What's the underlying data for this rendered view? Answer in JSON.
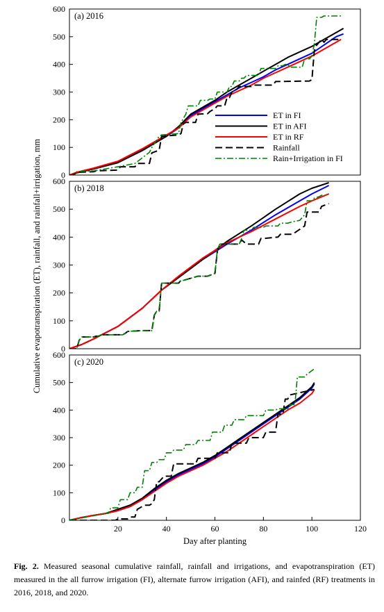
{
  "chart_data": [
    {
      "type": "line",
      "panel_label": "(a) 2016",
      "ylim": [
        0,
        600
      ],
      "y_ticks": [
        0,
        100,
        200,
        300,
        400,
        500,
        600
      ],
      "legend": "center-right",
      "series": [
        {
          "name": "ET in FI",
          "color": "#0000ff",
          "dash": "solid",
          "x": [
            0,
            3,
            10,
            20,
            30,
            40,
            45,
            50,
            55,
            60,
            65,
            70,
            75,
            80,
            85,
            90,
            95,
            100,
            105,
            110,
            113
          ],
          "y": [
            0,
            8,
            22,
            45,
            90,
            140,
            170,
            215,
            240,
            265,
            290,
            315,
            335,
            355,
            380,
            400,
            420,
            440,
            470,
            500,
            510
          ]
        },
        {
          "name": "ET in AFI",
          "color": "#000000",
          "dash": "solid",
          "x": [
            0,
            3,
            10,
            20,
            30,
            40,
            45,
            50,
            55,
            60,
            65,
            70,
            75,
            80,
            85,
            90,
            95,
            100,
            105,
            110,
            113
          ],
          "y": [
            0,
            8,
            22,
            45,
            88,
            140,
            175,
            220,
            245,
            270,
            300,
            325,
            350,
            375,
            400,
            425,
            445,
            465,
            490,
            515,
            530
          ]
        },
        {
          "name": "ET in RF",
          "color": "#ff0000",
          "dash": "solid",
          "x": [
            0,
            3,
            10,
            20,
            30,
            40,
            45,
            50,
            55,
            60,
            65,
            70,
            75,
            80,
            85,
            90,
            95,
            100,
            105,
            110,
            112
          ],
          "y": [
            0,
            10,
            25,
            50,
            95,
            145,
            170,
            210,
            235,
            260,
            285,
            305,
            325,
            350,
            370,
            390,
            410,
            430,
            455,
            480,
            490
          ]
        },
        {
          "name": "Rainfall",
          "color": "#000000",
          "dash": "dash",
          "x": [
            0,
            1,
            2,
            3,
            10,
            11,
            20,
            21,
            27,
            28,
            33,
            34,
            37,
            38,
            45,
            46,
            47,
            48,
            52,
            53,
            57,
            58,
            60,
            61,
            64,
            65,
            66,
            67,
            69,
            70,
            75,
            76,
            84,
            85,
            99,
            100,
            101,
            102,
            104,
            105,
            106,
            107,
            112
          ],
          "y": [
            0,
            0,
            3,
            10,
            12,
            15,
            18,
            30,
            30,
            42,
            42,
            80,
            90,
            140,
            145,
            150,
            185,
            190,
            190,
            220,
            222,
            230,
            240,
            250,
            250,
            280,
            280,
            300,
            310,
            320,
            320,
            325,
            325,
            338,
            340,
            345,
            450,
            470,
            490,
            480,
            490,
            490,
            490
          ]
        },
        {
          "name": "Rain+Irrigation in FI",
          "color": "#008000",
          "dash": "dashdot",
          "x": [
            0,
            2,
            3,
            10,
            20,
            27,
            33,
            34,
            37,
            38,
            45,
            46,
            48,
            49,
            53,
            54,
            57,
            58,
            60,
            61,
            65,
            66,
            67,
            68,
            70,
            71,
            72,
            73,
            78,
            79,
            85,
            86,
            88,
            89,
            90,
            91,
            96,
            97,
            99,
            100,
            101,
            102,
            104,
            105,
            106,
            107,
            112
          ],
          "y": [
            0,
            0,
            12,
            15,
            30,
            42,
            82,
            100,
            140,
            145,
            150,
            190,
            220,
            250,
            250,
            270,
            270,
            275,
            275,
            300,
            300,
            320,
            320,
            340,
            340,
            350,
            350,
            360,
            360,
            385,
            385,
            395,
            395,
            400,
            400,
            390,
            390,
            420,
            420,
            430,
            475,
            570,
            570,
            575,
            575,
            575,
            575
          ]
        }
      ]
    },
    {
      "type": "line",
      "panel_label": "(b) 2018",
      "ylim": [
        0,
        600
      ],
      "y_ticks": [
        0,
        100,
        200,
        300,
        400,
        500,
        600
      ],
      "series": [
        {
          "name": "ET in FI",
          "color": "#0000ff",
          "dash": "solid",
          "x": [
            0,
            5,
            10,
            20,
            30,
            38,
            45,
            55,
            65,
            75,
            85,
            95,
            100,
            107
          ],
          "y": [
            0,
            15,
            35,
            80,
            145,
            210,
            255,
            320,
            375,
            425,
            480,
            530,
            555,
            585
          ]
        },
        {
          "name": "ET in AFI",
          "color": "#000000",
          "dash": "solid",
          "x": [
            0,
            5,
            10,
            20,
            30,
            38,
            45,
            55,
            65,
            75,
            85,
            95,
            100,
            107
          ],
          "y": [
            0,
            15,
            35,
            80,
            145,
            210,
            255,
            320,
            385,
            440,
            500,
            555,
            575,
            595
          ]
        },
        {
          "name": "ET in RF",
          "color": "#ff0000",
          "dash": "solid",
          "x": [
            0,
            5,
            10,
            20,
            30,
            38,
            45,
            55,
            65,
            75,
            85,
            95,
            100,
            107
          ],
          "y": [
            0,
            15,
            35,
            80,
            145,
            210,
            260,
            325,
            380,
            420,
            465,
            510,
            530,
            555
          ]
        },
        {
          "name": "Rainfall",
          "color": "#000000",
          "dash": "dash",
          "x": [
            0,
            3,
            4,
            5,
            10,
            11,
            12,
            13,
            22,
            23,
            24,
            30,
            34,
            35,
            36,
            37,
            38,
            45,
            46,
            47,
            49,
            53,
            57,
            60,
            61,
            62,
            70,
            71,
            73,
            78,
            79,
            80,
            86,
            87,
            90,
            92,
            97,
            98,
            103,
            104,
            107
          ],
          "y": [
            0,
            0,
            30,
            42,
            42,
            45,
            45,
            50,
            50,
            55,
            62,
            65,
            65,
            120,
            135,
            135,
            235,
            235,
            245,
            245,
            250,
            260,
            260,
            270,
            350,
            375,
            375,
            390,
            375,
            375,
            395,
            395,
            400,
            410,
            410,
            410,
            440,
            490,
            490,
            510,
            520
          ]
        },
        {
          "name": "Rain+Irrigation in FI",
          "color": "#008000",
          "dash": "dashdot",
          "x": [
            0,
            3,
            4,
            5,
            10,
            11,
            12,
            13,
            22,
            23,
            24,
            30,
            34,
            35,
            36,
            37,
            38,
            45,
            46,
            47,
            49,
            53,
            57,
            60,
            61,
            62,
            70,
            71,
            72,
            75,
            76,
            80,
            81,
            86,
            87,
            90,
            92,
            95,
            97,
            98,
            100,
            101,
            103,
            104,
            106,
            107
          ],
          "y": [
            0,
            0,
            30,
            42,
            42,
            45,
            45,
            50,
            50,
            55,
            62,
            65,
            65,
            120,
            135,
            135,
            235,
            235,
            245,
            245,
            250,
            260,
            260,
            270,
            355,
            375,
            375,
            395,
            425,
            425,
            435,
            435,
            440,
            440,
            450,
            450,
            455,
            460,
            480,
            530,
            530,
            540,
            545,
            550,
            550,
            555
          ]
        }
      ]
    },
    {
      "type": "line",
      "panel_label": "(c) 2020",
      "xlabel": "Day after planting",
      "xlim": [
        0,
        120
      ],
      "x_ticks": [
        20,
        40,
        60,
        80,
        100,
        120
      ],
      "ylim": [
        0,
        600
      ],
      "y_ticks": [
        0,
        100,
        200,
        300,
        400,
        500,
        600
      ],
      "series": [
        {
          "name": "ET in FI",
          "color": "#0000ff",
          "dash": "solid",
          "x": [
            0,
            5,
            10,
            15,
            20,
            25,
            30,
            35,
            40,
            45,
            50,
            55,
            60,
            65,
            70,
            75,
            80,
            85,
            90,
            95,
            100,
            101
          ],
          "y": [
            0,
            10,
            18,
            25,
            35,
            50,
            75,
            110,
            140,
            165,
            185,
            205,
            230,
            260,
            290,
            320,
            350,
            380,
            410,
            440,
            480,
            495
          ]
        },
        {
          "name": "ET in AFI",
          "color": "#000000",
          "dash": "solid",
          "x": [
            0,
            5,
            10,
            15,
            20,
            25,
            30,
            35,
            40,
            45,
            50,
            55,
            60,
            65,
            70,
            75,
            80,
            85,
            90,
            95,
            100,
            101
          ],
          "y": [
            0,
            10,
            18,
            25,
            40,
            55,
            80,
            115,
            145,
            170,
            190,
            210,
            235,
            265,
            295,
            325,
            355,
            385,
            415,
            445,
            485,
            500
          ]
        },
        {
          "name": "ET in RF",
          "color": "#ff0000",
          "dash": "solid",
          "x": [
            0,
            5,
            10,
            15,
            20,
            25,
            30,
            35,
            40,
            45,
            50,
            55,
            60,
            65,
            70,
            75,
            80,
            85,
            90,
            95,
            100,
            101
          ],
          "y": [
            0,
            10,
            18,
            25,
            35,
            50,
            75,
            105,
            135,
            160,
            180,
            200,
            225,
            250,
            280,
            310,
            340,
            370,
            400,
            425,
            460,
            475
          ]
        },
        {
          "name": "Rainfall",
          "color": "#000000",
          "dash": "dash",
          "x": [
            0,
            19,
            20,
            24,
            25,
            27,
            28,
            30,
            31,
            33,
            34,
            35,
            36,
            37,
            38,
            39,
            42,
            43,
            52,
            53,
            60,
            61,
            66,
            67,
            73,
            74,
            80,
            81,
            85,
            86,
            88,
            89,
            90,
            91,
            101
          ],
          "y": [
            0,
            0,
            5,
            5,
            12,
            12,
            40,
            50,
            55,
            55,
            60,
            75,
            140,
            140,
            150,
            160,
            160,
            205,
            205,
            225,
            225,
            245,
            245,
            280,
            280,
            300,
            300,
            320,
            320,
            385,
            385,
            440,
            440,
            455,
            475
          ]
        },
        {
          "name": "Rain+Irrigation in FI",
          "color": "#008000",
          "dash": "dashdot",
          "x": [
            0,
            15,
            16,
            17,
            20,
            21,
            24,
            25,
            27,
            28,
            30,
            31,
            33,
            34,
            36,
            37,
            39,
            40,
            42,
            43,
            47,
            48,
            52,
            53,
            58,
            59,
            63,
            64,
            67,
            68,
            72,
            73,
            80,
            81,
            85,
            86,
            90,
            91,
            93,
            94,
            97,
            98,
            101
          ],
          "y": [
            0,
            25,
            25,
            45,
            45,
            75,
            75,
            100,
            100,
            120,
            120,
            180,
            180,
            210,
            210,
            220,
            220,
            245,
            245,
            255,
            255,
            275,
            275,
            290,
            290,
            320,
            320,
            345,
            345,
            365,
            365,
            380,
            380,
            400,
            400,
            405,
            405,
            420,
            420,
            520,
            520,
            530,
            550
          ]
        }
      ]
    }
  ],
  "ylabel": "Cumulative evapotranspiration (ET), rainfall, and rainfall+irrigation, mm",
  "caption": {
    "label": "Fig. 2.",
    "text": "Measured seasonal cumulative rainfall, rainfall and irrigations, and evapotranspiration (ET) measured in the all furrow irrigation (FI), alternate furrow irrigation (AFI), and rainfed (RF) treatments in 2016, 2018, and 2020."
  }
}
